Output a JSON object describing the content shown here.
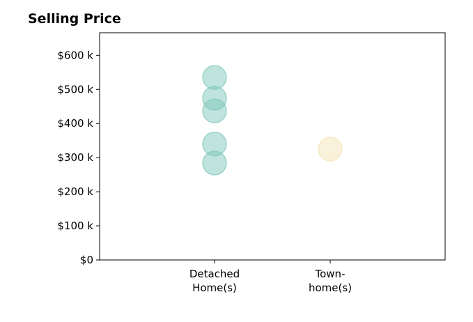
{
  "chart_data": {
    "type": "scatter",
    "title": "Selling Price",
    "xlabel": "",
    "ylabel": "",
    "categories": [
      {
        "lines": [
          "Detached",
          "Home(s)"
        ]
      },
      {
        "lines": [
          "Town-",
          "home(s)"
        ]
      }
    ],
    "ylim": [
      0,
      666000
    ],
    "yticks": [
      {
        "value": 0,
        "label": "$0"
      },
      {
        "value": 100000,
        "label": "$100 k"
      },
      {
        "value": 200000,
        "label": "$200 k"
      },
      {
        "value": 300000,
        "label": "$300 k"
      },
      {
        "value": 400000,
        "label": "$400 k"
      },
      {
        "value": 500000,
        "label": "$500 k"
      },
      {
        "value": 600000,
        "label": "$600 k"
      }
    ],
    "series": [
      {
        "category_index": 0,
        "color": "#7fc7bb",
        "values": [
          535000,
          474000,
          437000,
          340000,
          284000
        ]
      },
      {
        "category_index": 1,
        "color": "#f6e3b5",
        "values": [
          325000
        ]
      }
    ],
    "grid": false,
    "legend": "none"
  }
}
